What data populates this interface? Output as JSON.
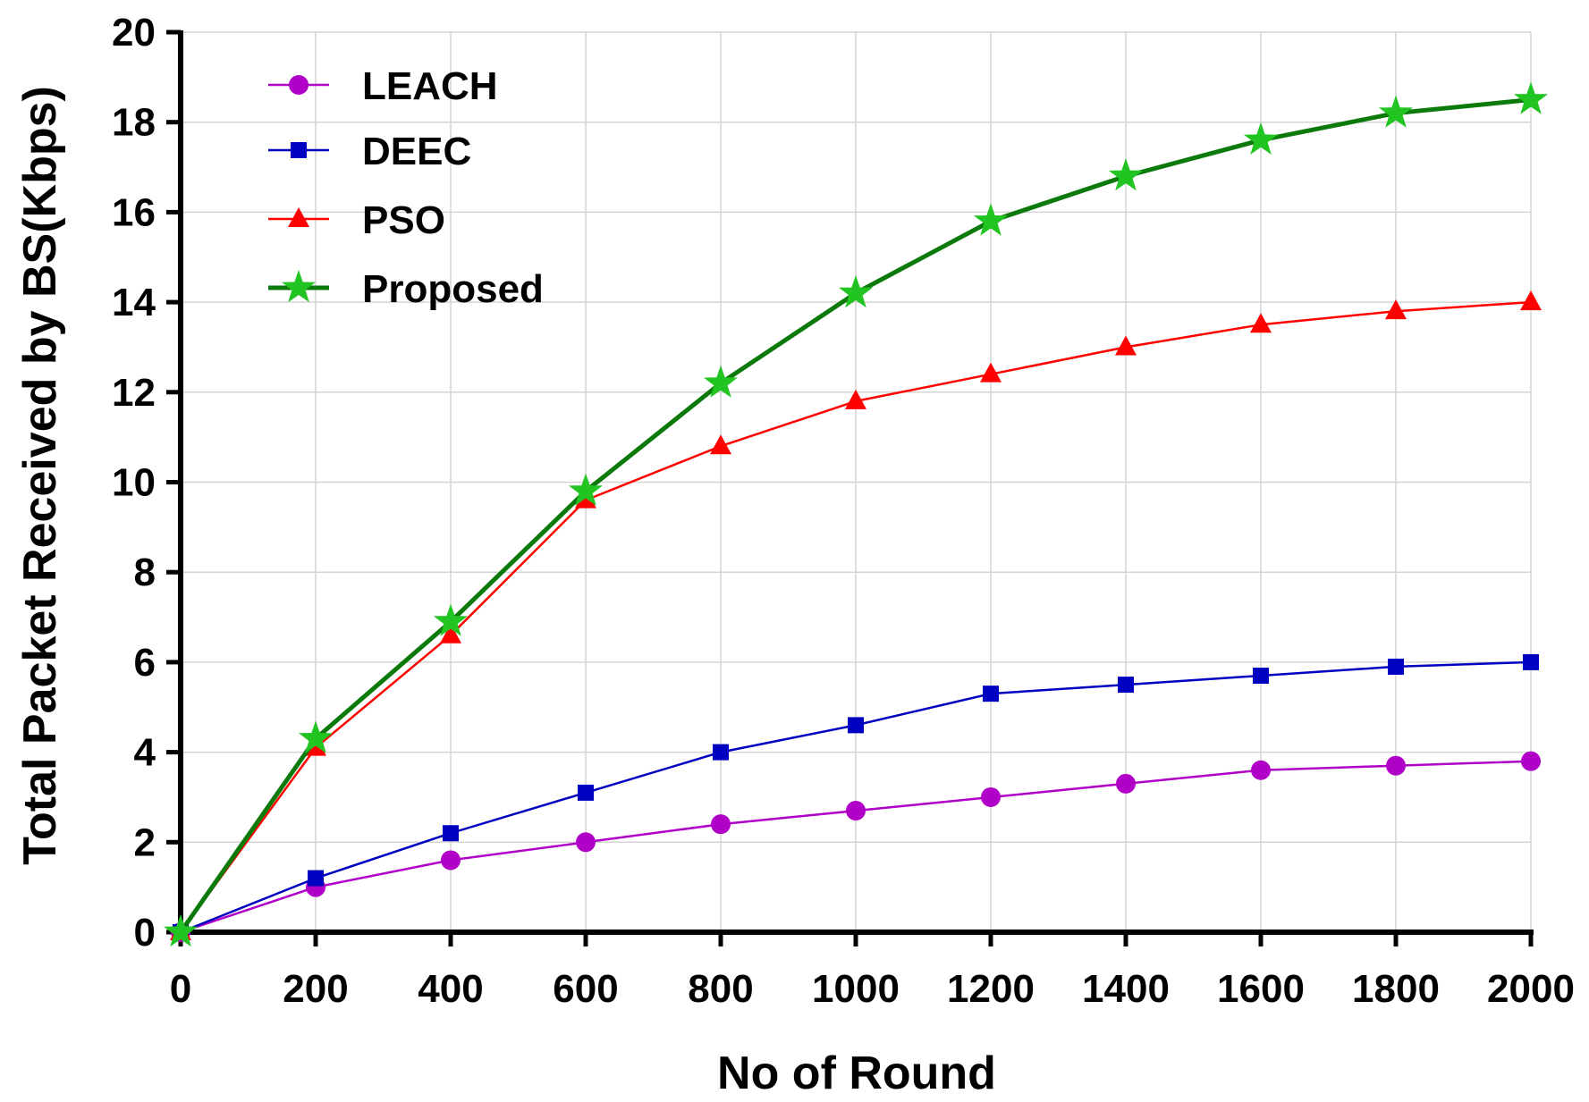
{
  "chart_data": {
    "type": "line",
    "title": "",
    "xlabel": "No of Round",
    "ylabel": "Total Packet Received by BS(Kbps)",
    "xlim": [
      0,
      2000
    ],
    "ylim": [
      0,
      20
    ],
    "x_ticks": [
      0,
      200,
      400,
      600,
      800,
      1000,
      1200,
      1400,
      1600,
      1800,
      2000
    ],
    "y_ticks": [
      0,
      2,
      4,
      6,
      8,
      10,
      12,
      14,
      16,
      18,
      20
    ],
    "grid": true,
    "legend_position": "top-left",
    "x": [
      0,
      200,
      400,
      600,
      800,
      1000,
      1200,
      1400,
      1600,
      1800,
      2000
    ],
    "series": [
      {
        "name": "LEACH",
        "color": "#b000c8",
        "marker": "circle",
        "values": [
          0,
          1.0,
          1.6,
          2.0,
          2.4,
          2.7,
          3.0,
          3.3,
          3.6,
          3.7,
          3.8
        ]
      },
      {
        "name": "DEEC",
        "color": "#0000c0",
        "marker": "square",
        "values": [
          0,
          1.2,
          2.2,
          3.1,
          4.0,
          4.6,
          5.3,
          5.5,
          5.7,
          5.9,
          6.0
        ]
      },
      {
        "name": "PSO",
        "color": "#ff0000",
        "marker": "triangle",
        "values": [
          0,
          4.1,
          6.6,
          9.6,
          10.8,
          11.8,
          12.4,
          13.0,
          13.5,
          13.8,
          14.0
        ]
      },
      {
        "name": "Proposed",
        "color": "#0b7a0b",
        "marker": "star",
        "marker_color": "#22c422",
        "values": [
          0,
          4.3,
          6.9,
          9.8,
          12.2,
          14.2,
          15.8,
          16.8,
          17.6,
          18.2,
          18.5
        ]
      }
    ]
  }
}
